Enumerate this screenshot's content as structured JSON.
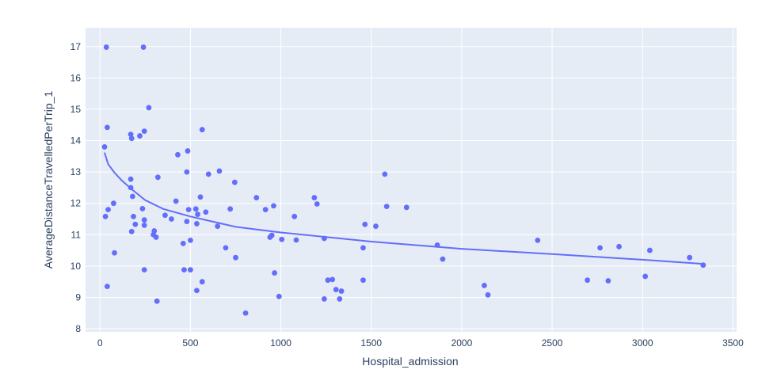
{
  "chart_data": {
    "type": "scatter",
    "xlabel": "Hospital_admission",
    "ylabel": "AverageDistanceTravelledPerTrip_1",
    "xlim": [
      -80,
      3520
    ],
    "ylim": [
      7.9,
      17.6
    ],
    "x_ticks": [
      0,
      500,
      1000,
      1500,
      2000,
      2500,
      3000,
      3500
    ],
    "y_ticks": [
      8,
      9,
      10,
      11,
      12,
      13,
      14,
      15,
      16,
      17
    ],
    "grid": true,
    "legend": "none",
    "colors": {
      "plot_bg": "#e5ecf6",
      "grid": "#ffffff",
      "marker": "#636efa",
      "line": "#636efa",
      "text": "#2a3f5f"
    },
    "series": [
      {
        "mode": "markers",
        "points": [
          [
            35,
            16.98
          ],
          [
            240,
            16.98
          ],
          [
            270,
            15.05
          ],
          [
            40,
            14.42
          ],
          [
            245,
            14.3
          ],
          [
            565,
            14.35
          ],
          [
            170,
            14.2
          ],
          [
            175,
            14.07
          ],
          [
            220,
            14.15
          ],
          [
            25,
            13.8
          ],
          [
            430,
            13.55
          ],
          [
            485,
            13.67
          ],
          [
            480,
            13.0
          ],
          [
            660,
            13.03
          ],
          [
            320,
            12.83
          ],
          [
            600,
            12.93
          ],
          [
            1575,
            12.93
          ],
          [
            170,
            12.77
          ],
          [
            745,
            12.67
          ],
          [
            170,
            12.5
          ],
          [
            180,
            12.22
          ],
          [
            555,
            12.2
          ],
          [
            865,
            12.18
          ],
          [
            1185,
            12.18
          ],
          [
            420,
            12.07
          ],
          [
            75,
            12.0
          ],
          [
            1200,
            11.98
          ],
          [
            960,
            11.92
          ],
          [
            1585,
            11.9
          ],
          [
            1695,
            11.87
          ],
          [
            45,
            11.8
          ],
          [
            235,
            11.83
          ],
          [
            490,
            11.8
          ],
          [
            530,
            11.82
          ],
          [
            720,
            11.82
          ],
          [
            915,
            11.8
          ],
          [
            585,
            11.72
          ],
          [
            540,
            11.65
          ],
          [
            360,
            11.62
          ],
          [
            185,
            11.58
          ],
          [
            30,
            11.58
          ],
          [
            1075,
            11.58
          ],
          [
            395,
            11.5
          ],
          [
            245,
            11.47
          ],
          [
            480,
            11.42
          ],
          [
            535,
            11.35
          ],
          [
            195,
            11.33
          ],
          [
            245,
            11.3
          ],
          [
            1465,
            11.33
          ],
          [
            1525,
            11.27
          ],
          [
            650,
            11.27
          ],
          [
            300,
            11.12
          ],
          [
            175,
            11.1
          ],
          [
            295,
            11.0
          ],
          [
            310,
            10.92
          ],
          [
            940,
            10.92
          ],
          [
            950,
            10.98
          ],
          [
            1240,
            10.88
          ],
          [
            500,
            10.82
          ],
          [
            1005,
            10.85
          ],
          [
            1085,
            10.83
          ],
          [
            2420,
            10.82
          ],
          [
            460,
            10.72
          ],
          [
            1865,
            10.67
          ],
          [
            695,
            10.58
          ],
          [
            1455,
            10.58
          ],
          [
            2765,
            10.58
          ],
          [
            2870,
            10.62
          ],
          [
            3040,
            10.5
          ],
          [
            80,
            10.42
          ],
          [
            750,
            10.27
          ],
          [
            1895,
            10.22
          ],
          [
            3260,
            10.27
          ],
          [
            3335,
            10.03
          ],
          [
            465,
            9.88
          ],
          [
            245,
            9.88
          ],
          [
            500,
            9.88
          ],
          [
            965,
            9.78
          ],
          [
            3015,
            9.67
          ],
          [
            565,
            9.5
          ],
          [
            1260,
            9.55
          ],
          [
            1285,
            9.57
          ],
          [
            1455,
            9.55
          ],
          [
            2695,
            9.55
          ],
          [
            2810,
            9.53
          ],
          [
            40,
            9.35
          ],
          [
            2125,
            9.38
          ],
          [
            535,
            9.22
          ],
          [
            1305,
            9.25
          ],
          [
            1335,
            9.2
          ],
          [
            2145,
            9.08
          ],
          [
            990,
            9.03
          ],
          [
            1240,
            8.95
          ],
          [
            1325,
            8.95
          ],
          [
            315,
            8.88
          ],
          [
            805,
            8.5
          ]
        ]
      },
      {
        "mode": "lines",
        "points": [
          [
            25,
            13.62
          ],
          [
            45,
            13.25
          ],
          [
            80,
            12.98
          ],
          [
            120,
            12.73
          ],
          [
            175,
            12.45
          ],
          [
            250,
            12.1
          ],
          [
            350,
            11.82
          ],
          [
            500,
            11.58
          ],
          [
            750,
            11.25
          ],
          [
            1000,
            11.07
          ],
          [
            1500,
            10.78
          ],
          [
            2000,
            10.55
          ],
          [
            2500,
            10.38
          ],
          [
            3000,
            10.2
          ],
          [
            3335,
            10.07
          ]
        ]
      }
    ]
  }
}
